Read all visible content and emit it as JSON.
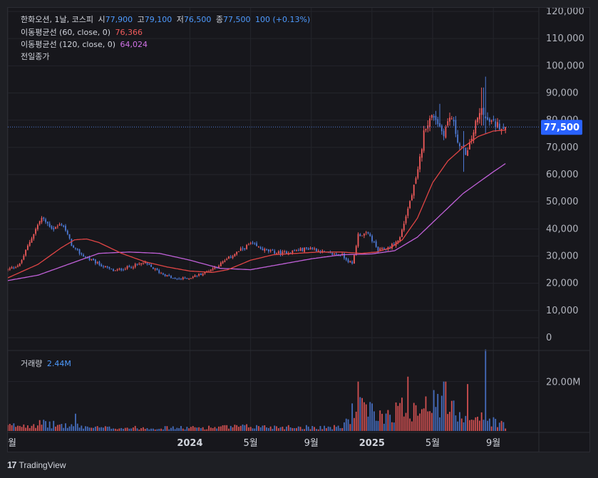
{
  "legend": {
    "symbol_info": "한화오션, 1날, 코스피",
    "open_label": "시",
    "open": "77,900",
    "high_label": "고",
    "high": "79,100",
    "low_label": "저",
    "low": "76,500",
    "close_label": "종",
    "close": "77,500",
    "change": "100 (+0.13%)",
    "ma60_label": "이동평균선 (60, close, 0)",
    "ma60_value": "76,366",
    "ma120_label": "이동평균선 (120, close, 0)",
    "ma120_value": "64,024",
    "prev_close_label": "전일종가"
  },
  "volume_legend": {
    "label": "거래량",
    "value": "2.44M"
  },
  "price_tag": "77,500",
  "brand": {
    "name": "TradingView"
  },
  "colors": {
    "up": "#f25b5b",
    "down": "#4e7bd8",
    "ma60": "#e04545",
    "ma120": "#c060d8",
    "price_tag": "#2962ff"
  },
  "chart_data": {
    "type": "candlestick",
    "title": "한화오션, 1날, 코스피",
    "y_axis": {
      "ylim": [
        0,
        120000
      ],
      "ticks": [
        0,
        10000,
        20000,
        30000,
        40000,
        50000,
        60000,
        70000,
        80000,
        90000,
        100000,
        110000,
        120000
      ],
      "tick_labels": [
        "0",
        "10,000",
        "20,000",
        "30,000",
        "40,000",
        "50,000",
        "60,000",
        "70,000",
        "80,000",
        "90,000",
        "100,000",
        "110,000",
        "120,000"
      ]
    },
    "x_axis": {
      "tick_labels": [
        "월",
        "2024",
        "5월",
        "9월",
        "2025",
        "5월",
        "9월"
      ],
      "tick_times": [
        0,
        12,
        16,
        20,
        24,
        28,
        32
      ],
      "range": [
        0,
        35
      ],
      "unit": "months since Jan 2023"
    },
    "price_anchors": [
      {
        "t": 0,
        "v": 25000
      },
      {
        "t": 0.8,
        "v": 27000
      },
      {
        "t": 1.5,
        "v": 36000
      },
      {
        "t": 2.2,
        "v": 44000
      },
      {
        "t": 3,
        "v": 40000
      },
      {
        "t": 3.6,
        "v": 42000
      },
      {
        "t": 4.3,
        "v": 33000
      },
      {
        "t": 5,
        "v": 30000
      },
      {
        "t": 6,
        "v": 27000
      },
      {
        "t": 7,
        "v": 24500
      },
      {
        "t": 8,
        "v": 26000
      },
      {
        "t": 9,
        "v": 27500
      },
      {
        "t": 10,
        "v": 24000
      },
      {
        "t": 11,
        "v": 21500
      },
      {
        "t": 12,
        "v": 22000
      },
      {
        "t": 13,
        "v": 24000
      },
      {
        "t": 14,
        "v": 27000
      },
      {
        "t": 15,
        "v": 31000
      },
      {
        "t": 16,
        "v": 34500
      },
      {
        "t": 17,
        "v": 32000
      },
      {
        "t": 18,
        "v": 31000
      },
      {
        "t": 19,
        "v": 32000
      },
      {
        "t": 20,
        "v": 33000
      },
      {
        "t": 21,
        "v": 31000
      },
      {
        "t": 22,
        "v": 30500
      },
      {
        "t": 22.7,
        "v": 27000
      },
      {
        "t": 23.1,
        "v": 38000
      },
      {
        "t": 23.8,
        "v": 38000
      },
      {
        "t": 24.4,
        "v": 32000
      },
      {
        "t": 25.1,
        "v": 33000
      },
      {
        "t": 25.8,
        "v": 36000
      },
      {
        "t": 26.4,
        "v": 48000
      },
      {
        "t": 27,
        "v": 60000
      },
      {
        "t": 27.5,
        "v": 78000
      },
      {
        "t": 28.1,
        "v": 82000
      },
      {
        "t": 28.7,
        "v": 75000
      },
      {
        "t": 29.2,
        "v": 82000
      },
      {
        "t": 29.8,
        "v": 70000
      },
      {
        "t": 30.3,
        "v": 68000
      },
      {
        "t": 30.8,
        "v": 78000
      },
      {
        "t": 31.3,
        "v": 85000
      },
      {
        "t": 31.5,
        "v": 80000
      },
      {
        "t": 31.9,
        "v": 79000
      },
      {
        "t": 32.4,
        "v": 78000
      },
      {
        "t": 32.8,
        "v": 77500
      }
    ],
    "spikes": [
      {
        "t": 31.45,
        "high": 96000,
        "low": 75000
      },
      {
        "t": 31.3,
        "high": 92000,
        "low": 78000
      },
      {
        "t": 28.5,
        "high": 86000,
        "low": 78000
      },
      {
        "t": 30.0,
        "high": 76000,
        "low": 61000
      }
    ],
    "ma60": [
      {
        "t": 0,
        "v": 22000
      },
      {
        "t": 2,
        "v": 27000
      },
      {
        "t": 3.5,
        "v": 33000
      },
      {
        "t": 4.4,
        "v": 36000
      },
      {
        "t": 5.2,
        "v": 36300
      },
      {
        "t": 6,
        "v": 35000
      },
      {
        "t": 7.5,
        "v": 31000
      },
      {
        "t": 9,
        "v": 28000
      },
      {
        "t": 10.5,
        "v": 26000
      },
      {
        "t": 12,
        "v": 24500
      },
      {
        "t": 13.5,
        "v": 24000
      },
      {
        "t": 14.5,
        "v": 25000
      },
      {
        "t": 16,
        "v": 28500
      },
      {
        "t": 17.5,
        "v": 30500
      },
      {
        "t": 19,
        "v": 31000
      },
      {
        "t": 20.5,
        "v": 31500
      },
      {
        "t": 22,
        "v": 31500
      },
      {
        "t": 23.3,
        "v": 31000
      },
      {
        "t": 24.3,
        "v": 31500
      },
      {
        "t": 25.2,
        "v": 33000
      },
      {
        "t": 26,
        "v": 36000
      },
      {
        "t": 27,
        "v": 44000
      },
      {
        "t": 28,
        "v": 57000
      },
      {
        "t": 29,
        "v": 65000
      },
      {
        "t": 30,
        "v": 70000
      },
      {
        "t": 31,
        "v": 74000
      },
      {
        "t": 32,
        "v": 76000
      },
      {
        "t": 32.8,
        "v": 76366
      }
    ],
    "ma120": [
      {
        "t": 0,
        "v": 21000
      },
      {
        "t": 2,
        "v": 23000
      },
      {
        "t": 4,
        "v": 27000
      },
      {
        "t": 6,
        "v": 31000
      },
      {
        "t": 8,
        "v": 31500
      },
      {
        "t": 10,
        "v": 31000
      },
      {
        "t": 12,
        "v": 28500
      },
      {
        "t": 14,
        "v": 25500
      },
      {
        "t": 16,
        "v": 25000
      },
      {
        "t": 18,
        "v": 27000
      },
      {
        "t": 20,
        "v": 29000
      },
      {
        "t": 22,
        "v": 30500
      },
      {
        "t": 24,
        "v": 30800
      },
      {
        "t": 25.5,
        "v": 32000
      },
      {
        "t": 27,
        "v": 37000
      },
      {
        "t": 28.5,
        "v": 45000
      },
      {
        "t": 30,
        "v": 53000
      },
      {
        "t": 31,
        "v": 57000
      },
      {
        "t": 32,
        "v": 61000
      },
      {
        "t": 32.8,
        "v": 64024
      }
    ],
    "last_close": 77500,
    "volume": {
      "label": "거래량",
      "last": "2.44M",
      "ylim": [
        0,
        30000000
      ],
      "ticks": [
        20000000
      ],
      "tick_labels": [
        "20.00M"
      ],
      "level_anchors": [
        {
          "t": 0,
          "v": 2000000
        },
        {
          "t": 2,
          "v": 3000000
        },
        {
          "t": 6,
          "v": 1300000
        },
        {
          "t": 12,
          "v": 1300000
        },
        {
          "t": 16,
          "v": 1800000
        },
        {
          "t": 22,
          "v": 1500000
        },
        {
          "t": 23,
          "v": 10000000
        },
        {
          "t": 24.5,
          "v": 6000000
        },
        {
          "t": 26,
          "v": 9000000
        },
        {
          "t": 28,
          "v": 11000000
        },
        {
          "t": 30,
          "v": 7000000
        },
        {
          "t": 32,
          "v": 4000000
        },
        {
          "t": 32.8,
          "v": 2400000
        }
      ],
      "spikes": [
        {
          "t": 4.5,
          "v": 7000000
        },
        {
          "t": 23.1,
          "v": 20000000
        },
        {
          "t": 26.4,
          "v": 22000000
        },
        {
          "t": 28.8,
          "v": 20000000
        },
        {
          "t": 30.3,
          "v": 19000000
        },
        {
          "t": 31.45,
          "v": 33000000
        },
        {
          "t": 27.6,
          "v": 14000000
        }
      ]
    }
  }
}
